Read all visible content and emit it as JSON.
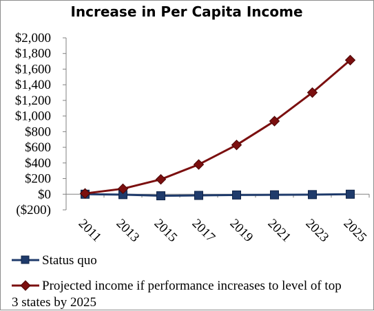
{
  "chart_data": {
    "type": "line",
    "title": "Increase in Per Capita Income",
    "xlabel": "",
    "ylabel": "",
    "x": [
      "2011",
      "2013",
      "2015",
      "2017",
      "2019",
      "2021",
      "2023",
      "2025"
    ],
    "ylim": [
      -200,
      2000
    ],
    "yticks": [
      -200,
      0,
      200,
      400,
      600,
      800,
      1000,
      1200,
      1400,
      1600,
      1800,
      2000
    ],
    "ytick_labels": [
      "($200)",
      "$0",
      "$200",
      "$400",
      "$600",
      "$800",
      "$1,000",
      "$1,200",
      "$1,400",
      "$1,600",
      "$1,800",
      "$2,000"
    ],
    "grid": false,
    "legend_position": "bottom",
    "series": [
      {
        "name": "Status quo",
        "values": [
          0,
          -5,
          -20,
          -15,
          -10,
          -8,
          -5,
          0
        ],
        "color": "#1f3b6b",
        "marker": "square"
      },
      {
        "name": "Projected income if performance increases to level of top 3 states by 2025",
        "values": [
          10,
          70,
          190,
          380,
          630,
          935,
          1300,
          1715
        ],
        "color": "#7b0f0f",
        "marker": "diamond"
      }
    ]
  }
}
